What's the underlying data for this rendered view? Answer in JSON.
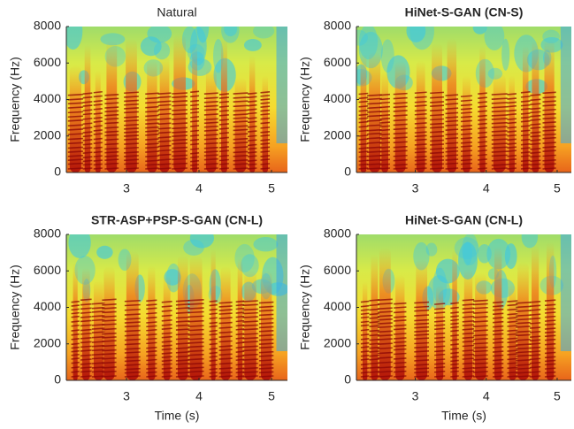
{
  "chart_data": [
    {
      "type": "spectrogram",
      "title": "Natural",
      "title_bold": false,
      "ylabel": "Frequency (Hz)",
      "xlim": [
        2.17,
        5.22
      ],
      "xticks": [
        3,
        4,
        5
      ],
      "ylim": [
        0,
        8000
      ],
      "yticks": [
        0,
        2000,
        4000,
        6000,
        8000
      ]
    },
    {
      "type": "spectrogram",
      "title": "HiNet-S-GAN (CN-S)",
      "title_bold": true,
      "ylabel": "Frequency (Hz)",
      "xlim": [
        2.17,
        5.2
      ],
      "xticks": [
        3,
        4,
        5
      ],
      "ylim": [
        0,
        8000
      ],
      "yticks": [
        0,
        2000,
        4000,
        6000,
        8000
      ]
    },
    {
      "type": "spectrogram",
      "title": "STR-ASP+PSP-S-GAN (CN-L)",
      "title_bold": true,
      "ylabel": "Frequency (Hz)",
      "xlabel": "Time (s)",
      "xlim": [
        2.17,
        5.22
      ],
      "xticks": [
        3,
        4,
        5
      ],
      "ylim": [
        0,
        8000
      ],
      "yticks": [
        0,
        2000,
        4000,
        6000,
        8000
      ]
    },
    {
      "type": "spectrogram",
      "title": "HiNet-S-GAN (CN-L)",
      "title_bold": true,
      "ylabel": "Frequency (Hz)",
      "xlabel": "Time (s)",
      "xlim": [
        2.17,
        5.2
      ],
      "xticks": [
        3,
        4,
        5
      ],
      "ylim": [
        0,
        8000
      ],
      "yticks": [
        0,
        2000,
        4000,
        6000,
        8000
      ]
    }
  ]
}
